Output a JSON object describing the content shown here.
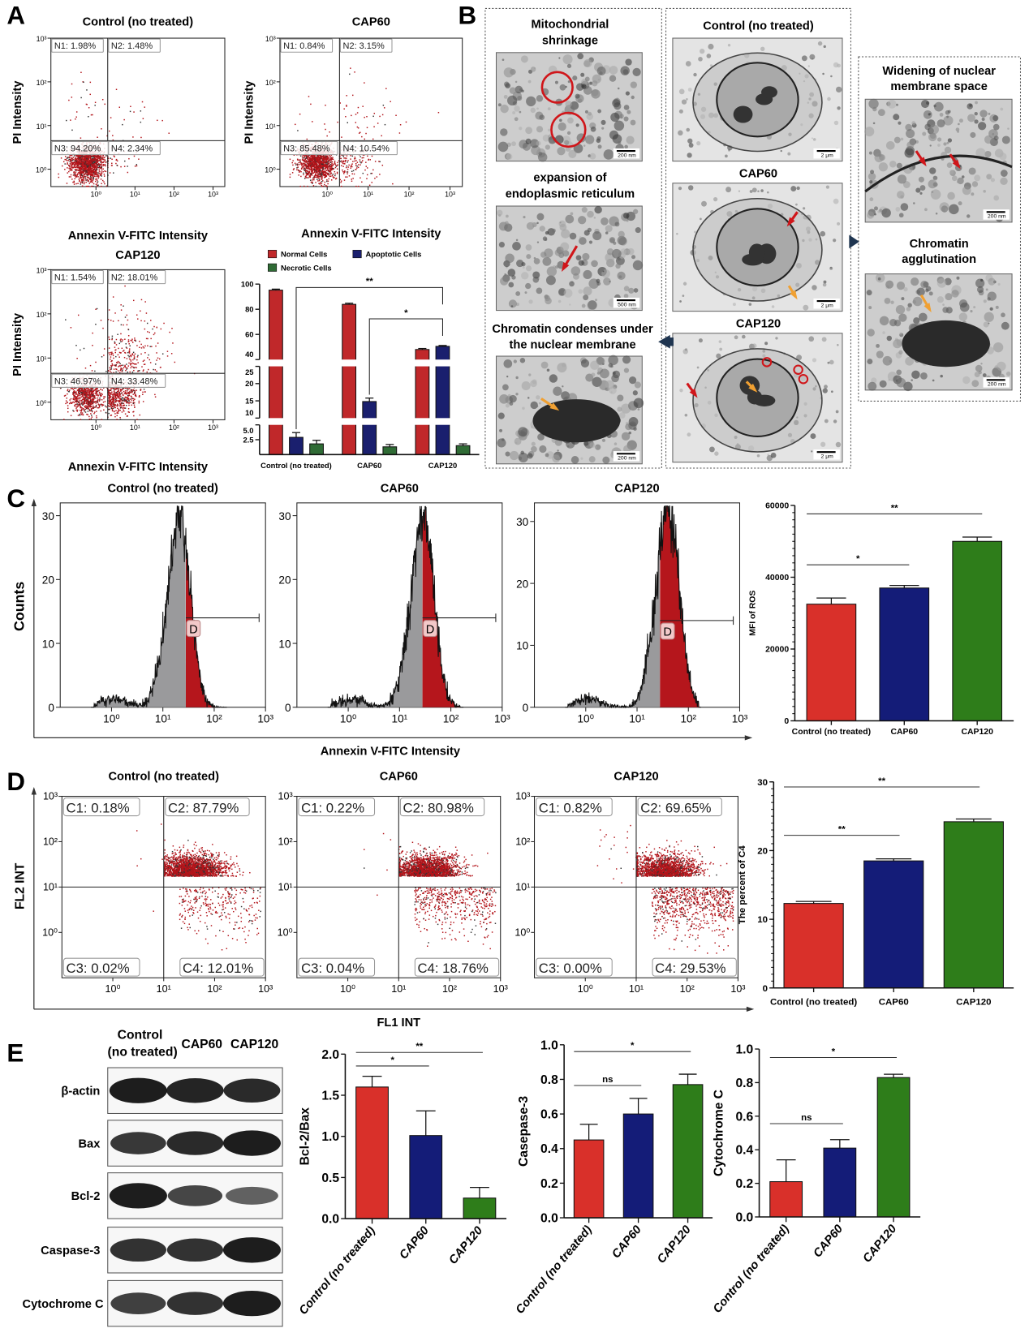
{
  "panel_labels": {
    "a": "A",
    "b": "B",
    "c": "C",
    "d": "D",
    "e": "E"
  },
  "panel_b": {
    "left": [
      {
        "caption": [
          "Mitochondrial",
          "shrinkage"
        ],
        "scale_bar": "200 nm"
      },
      {
        "caption": [
          "expansion of",
          "endoplasmic reticulum"
        ],
        "scale_bar": "500 nm"
      },
      {
        "caption": [
          "Chromatin condenses under",
          "the nuclear membrane"
        ],
        "scale_bar": "200 nm"
      }
    ],
    "middle": [
      {
        "caption": [
          "Control (no treated)"
        ],
        "scale_bar": "2 μm"
      },
      {
        "caption": [
          "CAP60"
        ],
        "scale_bar": "2 μm"
      },
      {
        "caption": [
          "CAP120"
        ],
        "scale_bar": "2 μm"
      }
    ],
    "right": [
      {
        "caption": [
          "Widening of nuclear",
          "membrane space"
        ],
        "scale_bar": "200 nm"
      },
      {
        "caption": [
          "Chromatin",
          "agglutination"
        ],
        "scale_bar": "200 nm"
      }
    ],
    "colors": {
      "connector_arrow": "#1f3550",
      "red_marker": "#d0161a",
      "orange_marker": "#f0a032"
    }
  },
  "panel_c": {
    "shared_xlabel": "Annexin V-FITC Intensity",
    "shared_ylabel": "Counts"
  },
  "panel_d": {
    "shared_xlabel": "FL1 INT",
    "shared_ylabel": "FL2 INT"
  },
  "panel_e_blot": {
    "columns": [
      [
        "Control",
        "(no treated)"
      ],
      [
        "CAP60"
      ],
      [
        "CAP120"
      ]
    ],
    "rows": [
      {
        "label": "β-actin",
        "band_intensity": [
          1.0,
          0.95,
          0.9
        ]
      },
      {
        "label": "Bax",
        "band_intensity": [
          0.8,
          0.9,
          1.0
        ]
      },
      {
        "label": "Bcl-2",
        "band_intensity": [
          1.0,
          0.7,
          0.5
        ]
      },
      {
        "label": "Caspase-3",
        "band_intensity": [
          0.85,
          0.85,
          1.0
        ]
      },
      {
        "label": "Cytochrome C",
        "band_intensity": [
          0.75,
          0.85,
          1.0
        ]
      }
    ]
  },
  "chart_data": [
    {
      "type": "scatter",
      "subtype": "flow-cytometry-quadrant",
      "title": "Control (no treated)",
      "xlabel": "Annexin V-FITC Intensity",
      "ylabel": "PI Intensity",
      "x_scale": "log",
      "y_scale": "log",
      "xlim": [
        0.07,
        2000
      ],
      "ylim": [
        0.4,
        1000
      ],
      "xticks": [
        1,
        10,
        100,
        1000
      ],
      "xtick_labels": [
        "10⁰",
        "10¹",
        "10²",
        "10³"
      ],
      "yticks": [
        1,
        10,
        100,
        1000
      ],
      "ytick_labels": [
        "10⁰",
        "10¹",
        "10²",
        "10³"
      ],
      "gates": {
        "x": 2,
        "y": 4.5
      },
      "quadrants": [
        {
          "id": "N1",
          "label": "N1: 1.98%",
          "percent": 1.98
        },
        {
          "id": "N2",
          "label": "N2: 1.48%",
          "percent": 1.48
        },
        {
          "id": "N3",
          "label": "N3: 94.20%",
          "percent": 94.2
        },
        {
          "id": "N4",
          "label": "N4: 2.34%",
          "percent": 2.34
        }
      ]
    },
    {
      "type": "scatter",
      "subtype": "flow-cytometry-quadrant",
      "title": "CAP60",
      "xlabel": "Annexin V-FITC Intensity",
      "ylabel": "PI Intensity",
      "x_scale": "log",
      "y_scale": "log",
      "xlim": [
        0.07,
        2000
      ],
      "ylim": [
        0.4,
        1000
      ],
      "xticks": [
        1,
        10,
        100,
        1000
      ],
      "xtick_labels": [
        "10⁰",
        "10¹",
        "10²",
        "10³"
      ],
      "yticks": [
        1,
        10,
        100,
        1000
      ],
      "ytick_labels": [
        "10⁰",
        "10¹",
        "10²",
        "10³"
      ],
      "gates": {
        "x": 2,
        "y": 4.5
      },
      "quadrants": [
        {
          "id": "N1",
          "label": "N1: 0.84%",
          "percent": 0.84
        },
        {
          "id": "N2",
          "label": "N2: 3.15%",
          "percent": 3.15
        },
        {
          "id": "N3",
          "label": "N3: 85.48%",
          "percent": 85.48
        },
        {
          "id": "N4",
          "label": "N4: 10.54%",
          "percent": 10.54
        }
      ]
    },
    {
      "type": "scatter",
      "subtype": "flow-cytometry-quadrant",
      "title": "CAP120",
      "xlabel": "Annexin V-FITC Intensity",
      "ylabel": "PI Intensity",
      "x_scale": "log",
      "y_scale": "log",
      "xlim": [
        0.07,
        2000
      ],
      "ylim": [
        0.4,
        1000
      ],
      "xticks": [
        1,
        10,
        100,
        1000
      ],
      "xtick_labels": [
        "10⁰",
        "10¹",
        "10²",
        "10³"
      ],
      "yticks": [
        1,
        10,
        100,
        1000
      ],
      "ytick_labels": [
        "10⁰",
        "10¹",
        "10²",
        "10³"
      ],
      "gates": {
        "x": 2,
        "y": 4.5
      },
      "quadrants": [
        {
          "id": "N1",
          "label": "N1: 1.54%",
          "percent": 1.54
        },
        {
          "id": "N2",
          "label": "N2: 18.01%",
          "percent": 18.01
        },
        {
          "id": "N3",
          "label": "N3: 46.97%",
          "percent": 46.97
        },
        {
          "id": "N4",
          "label": "N4: 33.48%",
          "percent": 33.48
        }
      ]
    },
    {
      "type": "bar",
      "subtype": "grouped-broken-axis",
      "categories": [
        "Control (no treated)",
        "CAP60",
        "CAP120"
      ],
      "series": [
        {
          "name": "Normal Cells",
          "values": [
            95.2,
            83.9,
            48.0
          ],
          "errors": [
            0.8,
            0.9,
            0.8
          ],
          "color": "#c0282a"
        },
        {
          "name": "Apoptotic Cells",
          "values": [
            2.9,
            14.8,
            50.5
          ],
          "errors": [
            0.8,
            1.0,
            0.7
          ],
          "color": "#1a1f6e"
        },
        {
          "name": "Necrotic Cells",
          "values": [
            1.8,
            1.3,
            1.5
          ],
          "errors": [
            0.6,
            0.4,
            0.3
          ],
          "color": "#2f6b35"
        }
      ],
      "ylim": [
        0,
        100
      ],
      "axis_segments": [
        [
          0,
          5
        ],
        [
          10,
          25
        ],
        [
          40,
          100
        ]
      ],
      "yticks": [
        2.5,
        5,
        10,
        15,
        20,
        25,
        40,
        60,
        80,
        100
      ],
      "ytick_labels": [
        "2.5",
        "5.0",
        "10",
        "15",
        "20",
        "25",
        "40",
        "60",
        "80",
        "100"
      ],
      "legend": "top",
      "significance": [
        {
          "from": [
            0,
            1
          ],
          "to": [
            2,
            1
          ],
          "label": "**"
        },
        {
          "from": [
            1,
            1
          ],
          "to": [
            2,
            1
          ],
          "label": "*"
        }
      ]
    },
    {
      "type": "area",
      "subtype": "histogram",
      "title": "Control (no treated)",
      "x_scale": "log",
      "xlim": [
        0.1,
        1000
      ],
      "ylim": [
        0,
        32
      ],
      "yticks": [
        0,
        10,
        20,
        30
      ],
      "ytick_labels": [
        "0",
        "10",
        "20",
        "30"
      ],
      "xticks": [
        1,
        10,
        100,
        1000
      ],
      "xtick_labels": [
        "10⁰",
        "10¹",
        "10²",
        "10³"
      ],
      "gate_label": "D",
      "gate_range": [
        28,
        750
      ],
      "peak_x": 22,
      "peak_count": 30,
      "fill_colors": {
        "below_gate": "#9a9a9c",
        "gate": "#b5161c"
      }
    },
    {
      "type": "area",
      "subtype": "histogram",
      "title": "CAP60",
      "x_scale": "log",
      "xlim": [
        0.1,
        1000
      ],
      "ylim": [
        0,
        32
      ],
      "yticks": [
        0,
        10,
        20,
        30
      ],
      "ytick_labels": [
        "0",
        "10",
        "20",
        "30"
      ],
      "xticks": [
        1,
        10,
        100,
        1000
      ],
      "xtick_labels": [
        "10⁰",
        "10¹",
        "10²",
        "10³"
      ],
      "gate_label": "D",
      "gate_range": [
        28,
        750
      ],
      "peak_x": 30,
      "peak_count": 30,
      "fill_colors": {
        "below_gate": "#9a9a9c",
        "gate": "#b5161c"
      }
    },
    {
      "type": "area",
      "subtype": "histogram",
      "title": "CAP120",
      "x_scale": "log",
      "xlim": [
        0.1,
        1000
      ],
      "ylim": [
        0,
        33
      ],
      "yticks": [
        0,
        10,
        20,
        30
      ],
      "ytick_labels": [
        "0",
        "10",
        "20",
        "30"
      ],
      "xticks": [
        1,
        10,
        100,
        1000
      ],
      "xtick_labels": [
        "10⁰",
        "10¹",
        "10²",
        "10³"
      ],
      "gate_label": "D",
      "gate_range": [
        28,
        750
      ],
      "peak_x": 42,
      "peak_count": 32,
      "fill_colors": {
        "below_gate": "#9a9a9c",
        "gate": "#b5161c"
      }
    },
    {
      "type": "bar",
      "categories": [
        "Control (no treated)",
        "CAP60",
        "CAP120"
      ],
      "ylabel": "MFI of ROS",
      "series": [
        {
          "values": [
            32500,
            37000,
            50000
          ],
          "errors": [
            1700,
            700,
            1200
          ],
          "colors": [
            "#d9302a",
            "#141c78",
            "#2e7d1a"
          ]
        }
      ],
      "ylim": [
        0,
        60000
      ],
      "yticks": [
        0,
        20000,
        40000,
        60000
      ],
      "ytick_labels": [
        "0",
        "20000",
        "40000",
        "60000"
      ],
      "significance": [
        {
          "from": 0,
          "to": 1,
          "label": "*"
        },
        {
          "from": 0,
          "to": 2,
          "label": "**"
        }
      ]
    },
    {
      "type": "scatter",
      "subtype": "flow-cytometry-quadrant",
      "title": "Control (no treated)",
      "x_scale": "log",
      "y_scale": "log",
      "xlim": [
        0.1,
        1000
      ],
      "ylim": [
        0.1,
        1000
      ],
      "xticks": [
        1,
        10,
        100,
        1000
      ],
      "xtick_labels": [
        "10⁰",
        "10¹",
        "10²",
        "10³"
      ],
      "yticks": [
        1,
        10,
        100,
        1000
      ],
      "ytick_labels": [
        "10⁰",
        "10¹",
        "10²",
        "10³"
      ],
      "gates": {
        "x": 10,
        "y": 10
      },
      "quadrants": [
        {
          "id": "C1",
          "label": "C1: 0.18%",
          "percent": 0.18
        },
        {
          "id": "C2",
          "label": "C2: 87.79%",
          "percent": 87.79
        },
        {
          "id": "C3",
          "label": "C3: 0.02%",
          "percent": 0.02
        },
        {
          "id": "C4",
          "label": "C4: 12.01%",
          "percent": 12.01
        }
      ]
    },
    {
      "type": "scatter",
      "subtype": "flow-cytometry-quadrant",
      "title": "CAP60",
      "x_scale": "log",
      "y_scale": "log",
      "xlim": [
        0.1,
        1000
      ],
      "ylim": [
        0.1,
        1000
      ],
      "xticks": [
        1,
        10,
        100,
        1000
      ],
      "xtick_labels": [
        "10⁰",
        "10¹",
        "10²",
        "10³"
      ],
      "yticks": [
        1,
        10,
        100,
        1000
      ],
      "ytick_labels": [
        "10⁰",
        "10¹",
        "10²",
        "10³"
      ],
      "gates": {
        "x": 10,
        "y": 10
      },
      "quadrants": [
        {
          "id": "C1",
          "label": "C1: 0.22%",
          "percent": 0.22
        },
        {
          "id": "C2",
          "label": "C2: 80.98%",
          "percent": 80.98
        },
        {
          "id": "C3",
          "label": "C3: 0.04%",
          "percent": 0.04
        },
        {
          "id": "C4",
          "label": "C4: 18.76%",
          "percent": 18.76
        }
      ]
    },
    {
      "type": "scatter",
      "subtype": "flow-cytometry-quadrant",
      "title": "CAP120",
      "x_scale": "log",
      "y_scale": "log",
      "xlim": [
        0.1,
        1000
      ],
      "ylim": [
        0.1,
        1000
      ],
      "xticks": [
        1,
        10,
        100,
        1000
      ],
      "xtick_labels": [
        "10⁰",
        "10¹",
        "10²",
        "10³"
      ],
      "yticks": [
        1,
        10,
        100,
        1000
      ],
      "ytick_labels": [
        "10⁰",
        "10¹",
        "10²",
        "10³"
      ],
      "gates": {
        "x": 10,
        "y": 10
      },
      "quadrants": [
        {
          "id": "C1",
          "label": "C1: 0.82%",
          "percent": 0.82
        },
        {
          "id": "C2",
          "label": "C2: 69.65%",
          "percent": 69.65
        },
        {
          "id": "C3",
          "label": "C3: 0.00%",
          "percent": 0.0
        },
        {
          "id": "C4",
          "label": "C4: 29.53%",
          "percent": 29.53
        }
      ]
    },
    {
      "type": "bar",
      "categories": [
        "Control (no treated)",
        "CAP60",
        "CAP120"
      ],
      "ylabel": "The percent of C4",
      "series": [
        {
          "values": [
            12.3,
            18.5,
            24.2
          ],
          "errors": [
            0.3,
            0.3,
            0.4
          ],
          "colors": [
            "#d9302a",
            "#141c78",
            "#2e7d1a"
          ]
        }
      ],
      "ylim": [
        0,
        30
      ],
      "yticks": [
        0,
        10,
        20,
        30
      ],
      "ytick_labels": [
        "0",
        "10",
        "20",
        "30"
      ],
      "significance": [
        {
          "from": 0,
          "to": 1,
          "label": "**"
        },
        {
          "from": 0,
          "to": 2,
          "label": "**"
        }
      ]
    },
    {
      "type": "bar",
      "categories": [
        "Control (no treated)",
        "CAP60",
        "CAP120"
      ],
      "ylabel": "Bcl-2/Bax",
      "series": [
        {
          "values": [
            1.6,
            1.01,
            0.25
          ],
          "errors": [
            0.13,
            0.3,
            0.13
          ],
          "colors": [
            "#d9302a",
            "#141c78",
            "#2e7d1a"
          ]
        }
      ],
      "ylim": [
        0,
        2
      ],
      "yticks": [
        0,
        0.5,
        1,
        1.5,
        2
      ],
      "ytick_labels": [
        "0.0",
        "0.5",
        "1.0",
        "1.5",
        "2.0"
      ],
      "significance": [
        {
          "from": 0,
          "to": 1,
          "label": "*"
        },
        {
          "from": 0,
          "to": 2,
          "label": "**"
        }
      ]
    },
    {
      "type": "bar",
      "categories": [
        "Control (no treated)",
        "CAP60",
        "CAP120"
      ],
      "ylabel": "Casepase-3",
      "series": [
        {
          "values": [
            0.45,
            0.6,
            0.77
          ],
          "errors": [
            0.09,
            0.09,
            0.06
          ],
          "colors": [
            "#d9302a",
            "#141c78",
            "#2e7d1a"
          ]
        }
      ],
      "ylim": [
        0,
        1
      ],
      "yticks": [
        0,
        0.2,
        0.4,
        0.6,
        0.8,
        1
      ],
      "ytick_labels": [
        "0.0",
        "0.2",
        "0.4",
        "0.6",
        "0.8",
        "1.0"
      ],
      "significance": [
        {
          "from": 0,
          "to": 1,
          "label": "ns"
        },
        {
          "from": 0,
          "to": 2,
          "label": "*"
        }
      ]
    },
    {
      "type": "bar",
      "categories": [
        "Control (no treated)",
        "CAP60",
        "CAP120"
      ],
      "ylabel": "Cytochrome C",
      "series": [
        {
          "values": [
            0.21,
            0.41,
            0.83
          ],
          "errors": [
            0.13,
            0.05,
            0.02
          ],
          "colors": [
            "#d9302a",
            "#141c78",
            "#2e7d1a"
          ]
        }
      ],
      "ylim": [
        0,
        1
      ],
      "yticks": [
        0,
        0.2,
        0.4,
        0.6,
        0.8,
        1
      ],
      "ytick_labels": [
        "0.0",
        "0.2",
        "0.4",
        "0.6",
        "0.8",
        "1.0"
      ],
      "significance": [
        {
          "from": 0,
          "to": 1,
          "label": "ns"
        },
        {
          "from": 0,
          "to": 2,
          "label": "*"
        }
      ]
    }
  ]
}
